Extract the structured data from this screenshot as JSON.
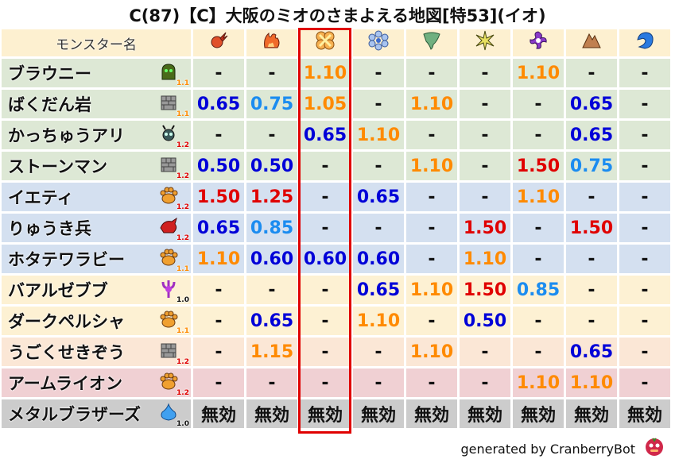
{
  "title": "C(87)【C】大阪のミオのさまよえる地図[特53](イオ)",
  "header": {
    "name_label": "モンスター名",
    "elements": [
      "fireball-icon",
      "flame-icon",
      "explosion-icon",
      "ice-icon",
      "wind-icon",
      "lightning-icon",
      "dark-icon",
      "earth-icon",
      "water-icon"
    ],
    "highlighted_column": 2
  },
  "colors": {
    "low": "#0000d8",
    "mid_low": "#1b8cf0",
    "mid_high": "#ff8a00",
    "high": "#e00000",
    "highlight": "#e00000"
  },
  "rows": [
    {
      "name": "ブラウニー",
      "icon": "ghost-icon",
      "level": "1.1",
      "bg": "#dde8d5",
      "values": [
        "-",
        "-",
        "1.10",
        "-",
        "-",
        "-",
        "1.10",
        "-",
        "-"
      ]
    },
    {
      "name": "ばくだん岩",
      "icon": "wall-icon",
      "level": "1.1",
      "bg": "#dde8d5",
      "values": [
        "0.65",
        "0.75",
        "1.05",
        "-",
        "1.10",
        "-",
        "-",
        "0.65",
        "-"
      ]
    },
    {
      "name": "かっちゅうアリ",
      "icon": "insect-icon",
      "level": "1.2",
      "bg": "#dde8d5",
      "values": [
        "-",
        "-",
        "0.65",
        "1.10",
        "-",
        "-",
        "-",
        "0.65",
        "-"
      ]
    },
    {
      "name": "ストーンマン",
      "icon": "wall-icon",
      "level": "1.2",
      "bg": "#dde8d5",
      "values": [
        "0.50",
        "0.50",
        "-",
        "-",
        "1.10",
        "-",
        "1.50",
        "0.75",
        "-"
      ]
    },
    {
      "name": "イエティ",
      "icon": "paw-icon",
      "level": "1.2",
      "bg": "#d4e0f0",
      "values": [
        "1.50",
        "1.25",
        "-",
        "0.65",
        "-",
        "-",
        "1.10",
        "-",
        "-"
      ]
    },
    {
      "name": "りゅうき兵",
      "icon": "dragon-icon",
      "level": "1.2",
      "bg": "#d4e0f0",
      "values": [
        "0.65",
        "0.85",
        "-",
        "-",
        "-",
        "1.50",
        "-",
        "1.50",
        "-"
      ]
    },
    {
      "name": "ホタテワラビー",
      "icon": "paw-icon",
      "level": "1.1",
      "bg": "#d4e0f0",
      "values": [
        "1.10",
        "0.60",
        "0.60",
        "0.60",
        "-",
        "1.10",
        "-",
        "-",
        "-"
      ]
    },
    {
      "name": "バアルゼブブ",
      "icon": "demon-icon",
      "level": "1.0",
      "bg": "#fdf1d3",
      "values": [
        "-",
        "-",
        "-",
        "0.65",
        "1.10",
        "1.50",
        "0.85",
        "-",
        "-"
      ]
    },
    {
      "name": "ダークペルシャ",
      "icon": "paw-icon",
      "level": "1.1",
      "bg": "#fdf1d3",
      "values": [
        "-",
        "0.65",
        "-",
        "1.10",
        "-",
        "0.50",
        "-",
        "-",
        "-"
      ]
    },
    {
      "name": "うごくせきぞう",
      "icon": "wall-icon",
      "level": "1.2",
      "bg": "#fbe7d6",
      "values": [
        "-",
        "1.15",
        "-",
        "-",
        "1.10",
        "-",
        "-",
        "0.65",
        "-"
      ]
    },
    {
      "name": "アームライオン",
      "icon": "paw-icon",
      "level": "1.2",
      "bg": "#f0d0d3",
      "values": [
        "-",
        "-",
        "-",
        "-",
        "-",
        "-",
        "1.10",
        "1.10",
        "-"
      ]
    },
    {
      "name": "メタルブラザーズ",
      "icon": "slime-icon",
      "level": "1.0",
      "bg": "#cccccc",
      "values": [
        "無効",
        "無効",
        "無効",
        "無効",
        "無効",
        "無効",
        "無効",
        "無効",
        "無効"
      ]
    }
  ],
  "footer": {
    "text": "generated by CranberryBot",
    "logo": "cranberry-icon"
  }
}
